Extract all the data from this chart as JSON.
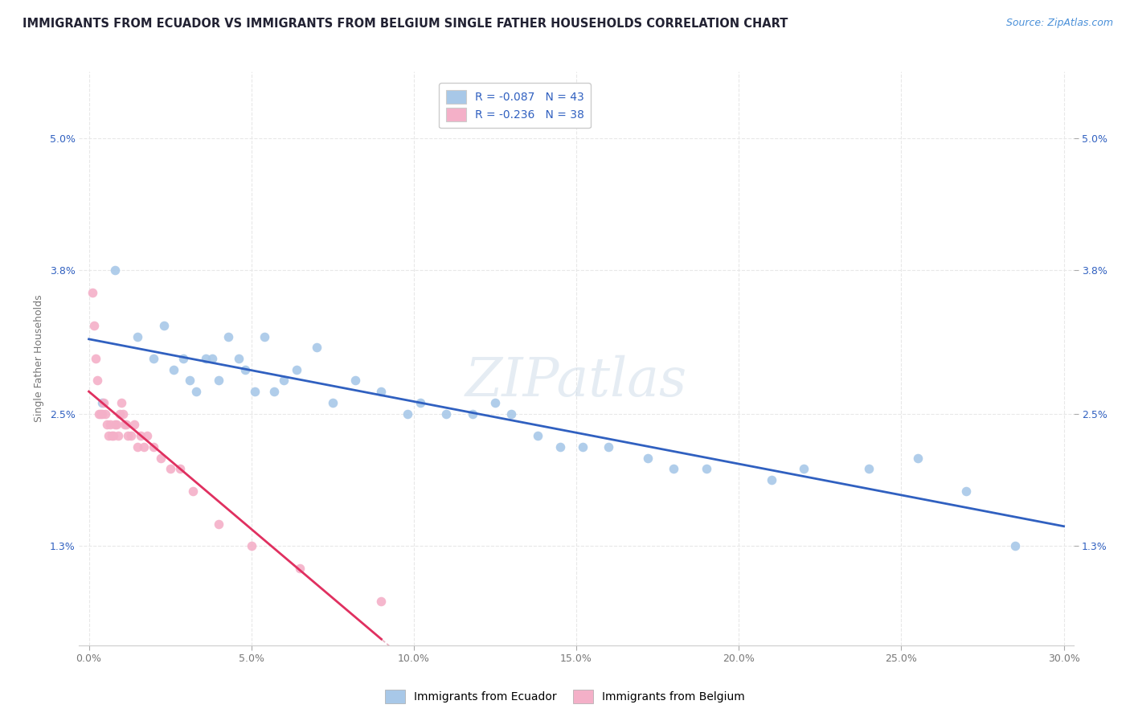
{
  "title": "IMMIGRANTS FROM ECUADOR VS IMMIGRANTS FROM BELGIUM SINGLE FATHER HOUSEHOLDS CORRELATION CHART",
  "source_text": "Source: ZipAtlas.com",
  "ylabel": "Single Father Households",
  "x_tick_labels": [
    "0.0%",
    "5.0%",
    "10.0%",
    "15.0%",
    "20.0%",
    "25.0%",
    "30.0%"
  ],
  "x_tick_values": [
    0.0,
    5.0,
    10.0,
    15.0,
    20.0,
    25.0,
    30.0
  ],
  "y_tick_labels": [
    "1.3%",
    "2.5%",
    "3.8%",
    "5.0%"
  ],
  "y_tick_values": [
    1.3,
    2.5,
    3.8,
    5.0
  ],
  "xlim": [
    -0.3,
    30.3
  ],
  "ylim": [
    0.4,
    5.6
  ],
  "ecuador_color": "#a8c8e8",
  "belgium_color": "#f4b0c8",
  "ecuador_line_color": "#3060c0",
  "belgium_line_color": "#e03060",
  "dashed_line_color": "#e8b0c0",
  "legend_r_ecuador": "R = -0.087",
  "legend_n_ecuador": "N = 43",
  "legend_r_belgium": "R = -0.236",
  "legend_n_belgium": "N = 38",
  "watermark": "ZIPatlas",
  "ecuador_x": [
    0.4,
    0.8,
    1.5,
    2.0,
    2.3,
    2.6,
    2.9,
    3.1,
    3.3,
    3.6,
    3.8,
    4.0,
    4.3,
    4.6,
    4.8,
    5.1,
    5.4,
    5.7,
    6.0,
    6.4,
    7.0,
    7.5,
    8.2,
    9.0,
    9.8,
    10.2,
    11.0,
    11.8,
    12.5,
    13.0,
    13.8,
    14.5,
    15.2,
    16.0,
    17.2,
    18.0,
    19.0,
    21.0,
    22.0,
    24.0,
    25.5,
    27.0,
    28.5
  ],
  "ecuador_y": [
    2.6,
    3.8,
    3.2,
    3.0,
    3.3,
    2.9,
    3.0,
    2.8,
    2.7,
    3.0,
    3.0,
    2.8,
    3.2,
    3.0,
    2.9,
    2.7,
    3.2,
    2.7,
    2.8,
    2.9,
    3.1,
    2.6,
    2.8,
    2.7,
    2.5,
    2.6,
    2.5,
    2.5,
    2.6,
    2.5,
    2.3,
    2.2,
    2.2,
    2.2,
    2.1,
    2.0,
    2.0,
    1.9,
    2.0,
    2.0,
    2.1,
    1.8,
    1.3
  ],
  "belgium_x": [
    0.1,
    0.15,
    0.2,
    0.25,
    0.3,
    0.35,
    0.4,
    0.45,
    0.5,
    0.55,
    0.6,
    0.65,
    0.7,
    0.75,
    0.8,
    0.85,
    0.9,
    0.95,
    1.0,
    1.05,
    1.1,
    1.15,
    1.2,
    1.3,
    1.4,
    1.5,
    1.6,
    1.7,
    1.8,
    2.0,
    2.2,
    2.5,
    2.8,
    3.2,
    4.0,
    5.0,
    6.5,
    9.0
  ],
  "belgium_y": [
    3.6,
    3.3,
    3.0,
    2.8,
    2.5,
    2.5,
    2.5,
    2.6,
    2.5,
    2.4,
    2.3,
    2.4,
    2.3,
    2.3,
    2.4,
    2.4,
    2.3,
    2.5,
    2.6,
    2.5,
    2.4,
    2.4,
    2.3,
    2.3,
    2.4,
    2.2,
    2.3,
    2.2,
    2.3,
    2.2,
    2.1,
    2.0,
    2.0,
    1.8,
    1.5,
    1.3,
    1.1,
    0.8
  ],
  "background_color": "#ffffff",
  "grid_color": "#e8e8e8",
  "title_color": "#222233",
  "title_fontsize": 10.5,
  "axis_label_fontsize": 9,
  "tick_fontsize": 9,
  "legend_fontsize": 10,
  "source_fontsize": 9,
  "source_color": "#4a90d9"
}
